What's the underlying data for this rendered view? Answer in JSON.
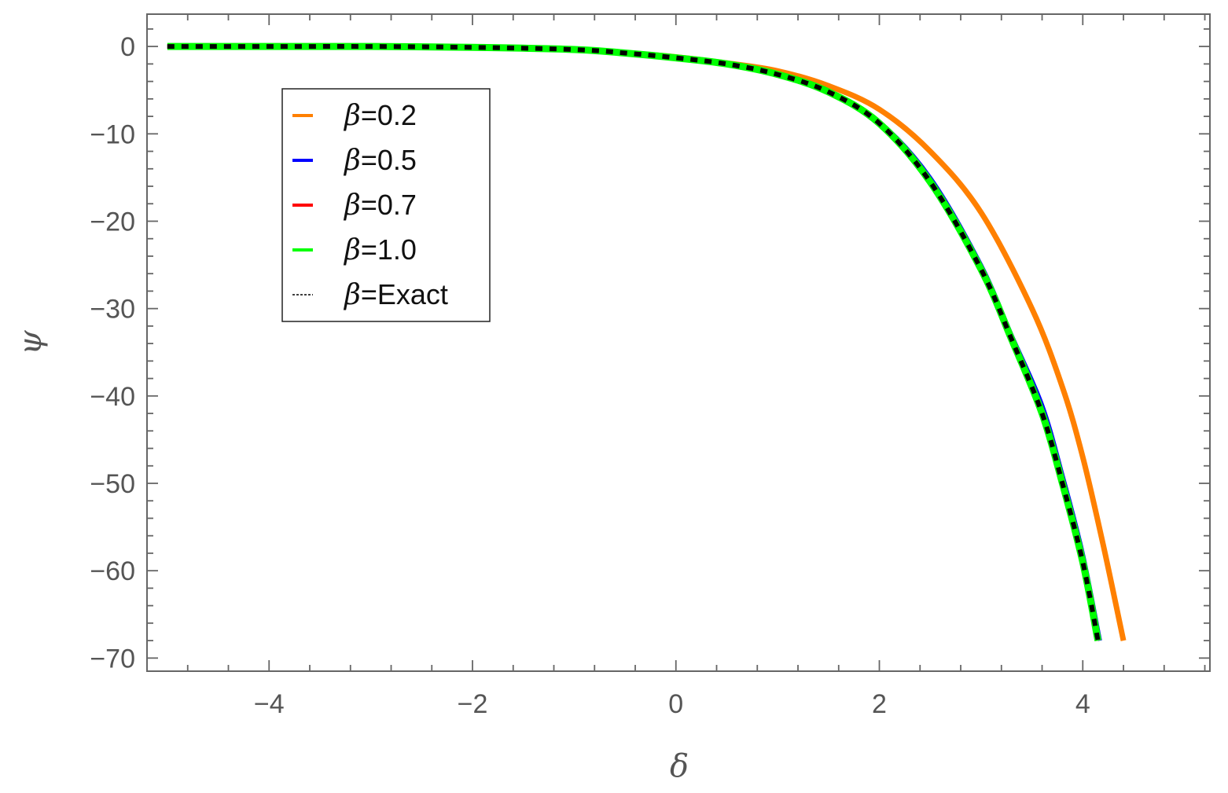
{
  "chart_data": {
    "type": "line",
    "title": "",
    "xlabel": "δ",
    "ylabel": "ψ",
    "xlim": [
      -5.2,
      5.25
    ],
    "ylim": [
      -71.5,
      3.7
    ],
    "xticks": [
      -4,
      -2,
      0,
      2,
      4
    ],
    "xtick_labels": [
      "−4",
      "−2",
      "0",
      "2",
      "4"
    ],
    "yticks": [
      0,
      -10,
      -20,
      -30,
      -40,
      -50,
      -60,
      -70
    ],
    "ytick_labels": [
      "0",
      "−10",
      "−20",
      "−30",
      "−40",
      "−50",
      "−60",
      "−70"
    ],
    "grid": false,
    "legend_position": "top-left",
    "legend_prefix": "β",
    "series": [
      {
        "name": "=0.2",
        "color": "#ff8000",
        "style": "solid",
        "x": [
          -5,
          -4,
          -3,
          -2,
          -1,
          -0.5,
          0,
          0.5,
          1,
          1.5,
          2,
          2.5,
          3,
          3.5,
          3.8,
          4.0,
          4.2,
          4.4
        ],
        "y": [
          0,
          0,
          0,
          -0.1,
          -0.3,
          -0.7,
          -1.2,
          -1.9,
          -2.8,
          -4.5,
          -7.2,
          -12,
          -19,
          -30,
          -39,
          -47,
          -57,
          -68
        ]
      },
      {
        "name": "=0.5",
        "color": "#0000ff",
        "style": "solid",
        "x": [
          -5,
          -4,
          -3,
          -2,
          -1,
          -0.5,
          0,
          0.5,
          1,
          1.5,
          2,
          2.5,
          3,
          3.3,
          3.6,
          3.8,
          4.0,
          4.17
        ],
        "y": [
          0,
          0,
          0,
          -0.1,
          -0.35,
          -0.75,
          -1.3,
          -2.0,
          -3.2,
          -5.1,
          -8.6,
          -15,
          -25,
          -33,
          -41,
          -49,
          -58,
          -68
        ]
      },
      {
        "name": "=0.7",
        "color": "#ff0000",
        "style": "solid",
        "x": [
          -5,
          -4,
          -3,
          -2,
          -1,
          -0.5,
          0,
          0.5,
          1,
          1.5,
          2,
          2.5,
          3,
          3.3,
          3.6,
          3.8,
          4.0,
          4.15
        ],
        "y": [
          0,
          0,
          0,
          -0.1,
          -0.35,
          -0.75,
          -1.3,
          -2.0,
          -3.2,
          -5.2,
          -8.8,
          -15.5,
          -25.5,
          -33.5,
          -42,
          -50,
          -59,
          -68
        ]
      },
      {
        "name": "=1.0",
        "color": "#00ff00",
        "style": "solid",
        "x": [
          -5,
          -4,
          -3,
          -2,
          -1,
          -0.5,
          0,
          0.5,
          1,
          1.5,
          2,
          2.5,
          3,
          3.3,
          3.6,
          3.8,
          4.0,
          4.15
        ],
        "y": [
          0,
          0,
          0,
          -0.1,
          -0.35,
          -0.75,
          -1.3,
          -2.0,
          -3.2,
          -5.2,
          -8.8,
          -15.5,
          -25.5,
          -33.5,
          -42,
          -50,
          -59,
          -68
        ]
      },
      {
        "name": "=Exact",
        "color": "#000000",
        "style": "dashed",
        "x": [
          -5,
          -4,
          -3,
          -2,
          -1,
          -0.5,
          0,
          0.5,
          1,
          1.5,
          2,
          2.5,
          3,
          3.3,
          3.6,
          3.8,
          4.0,
          4.15
        ],
        "y": [
          0,
          0,
          0,
          -0.1,
          -0.35,
          -0.75,
          -1.3,
          -2.0,
          -3.2,
          -5.2,
          -8.8,
          -15.5,
          -25.5,
          -33.5,
          -42,
          -50,
          -59,
          -68
        ]
      }
    ]
  }
}
